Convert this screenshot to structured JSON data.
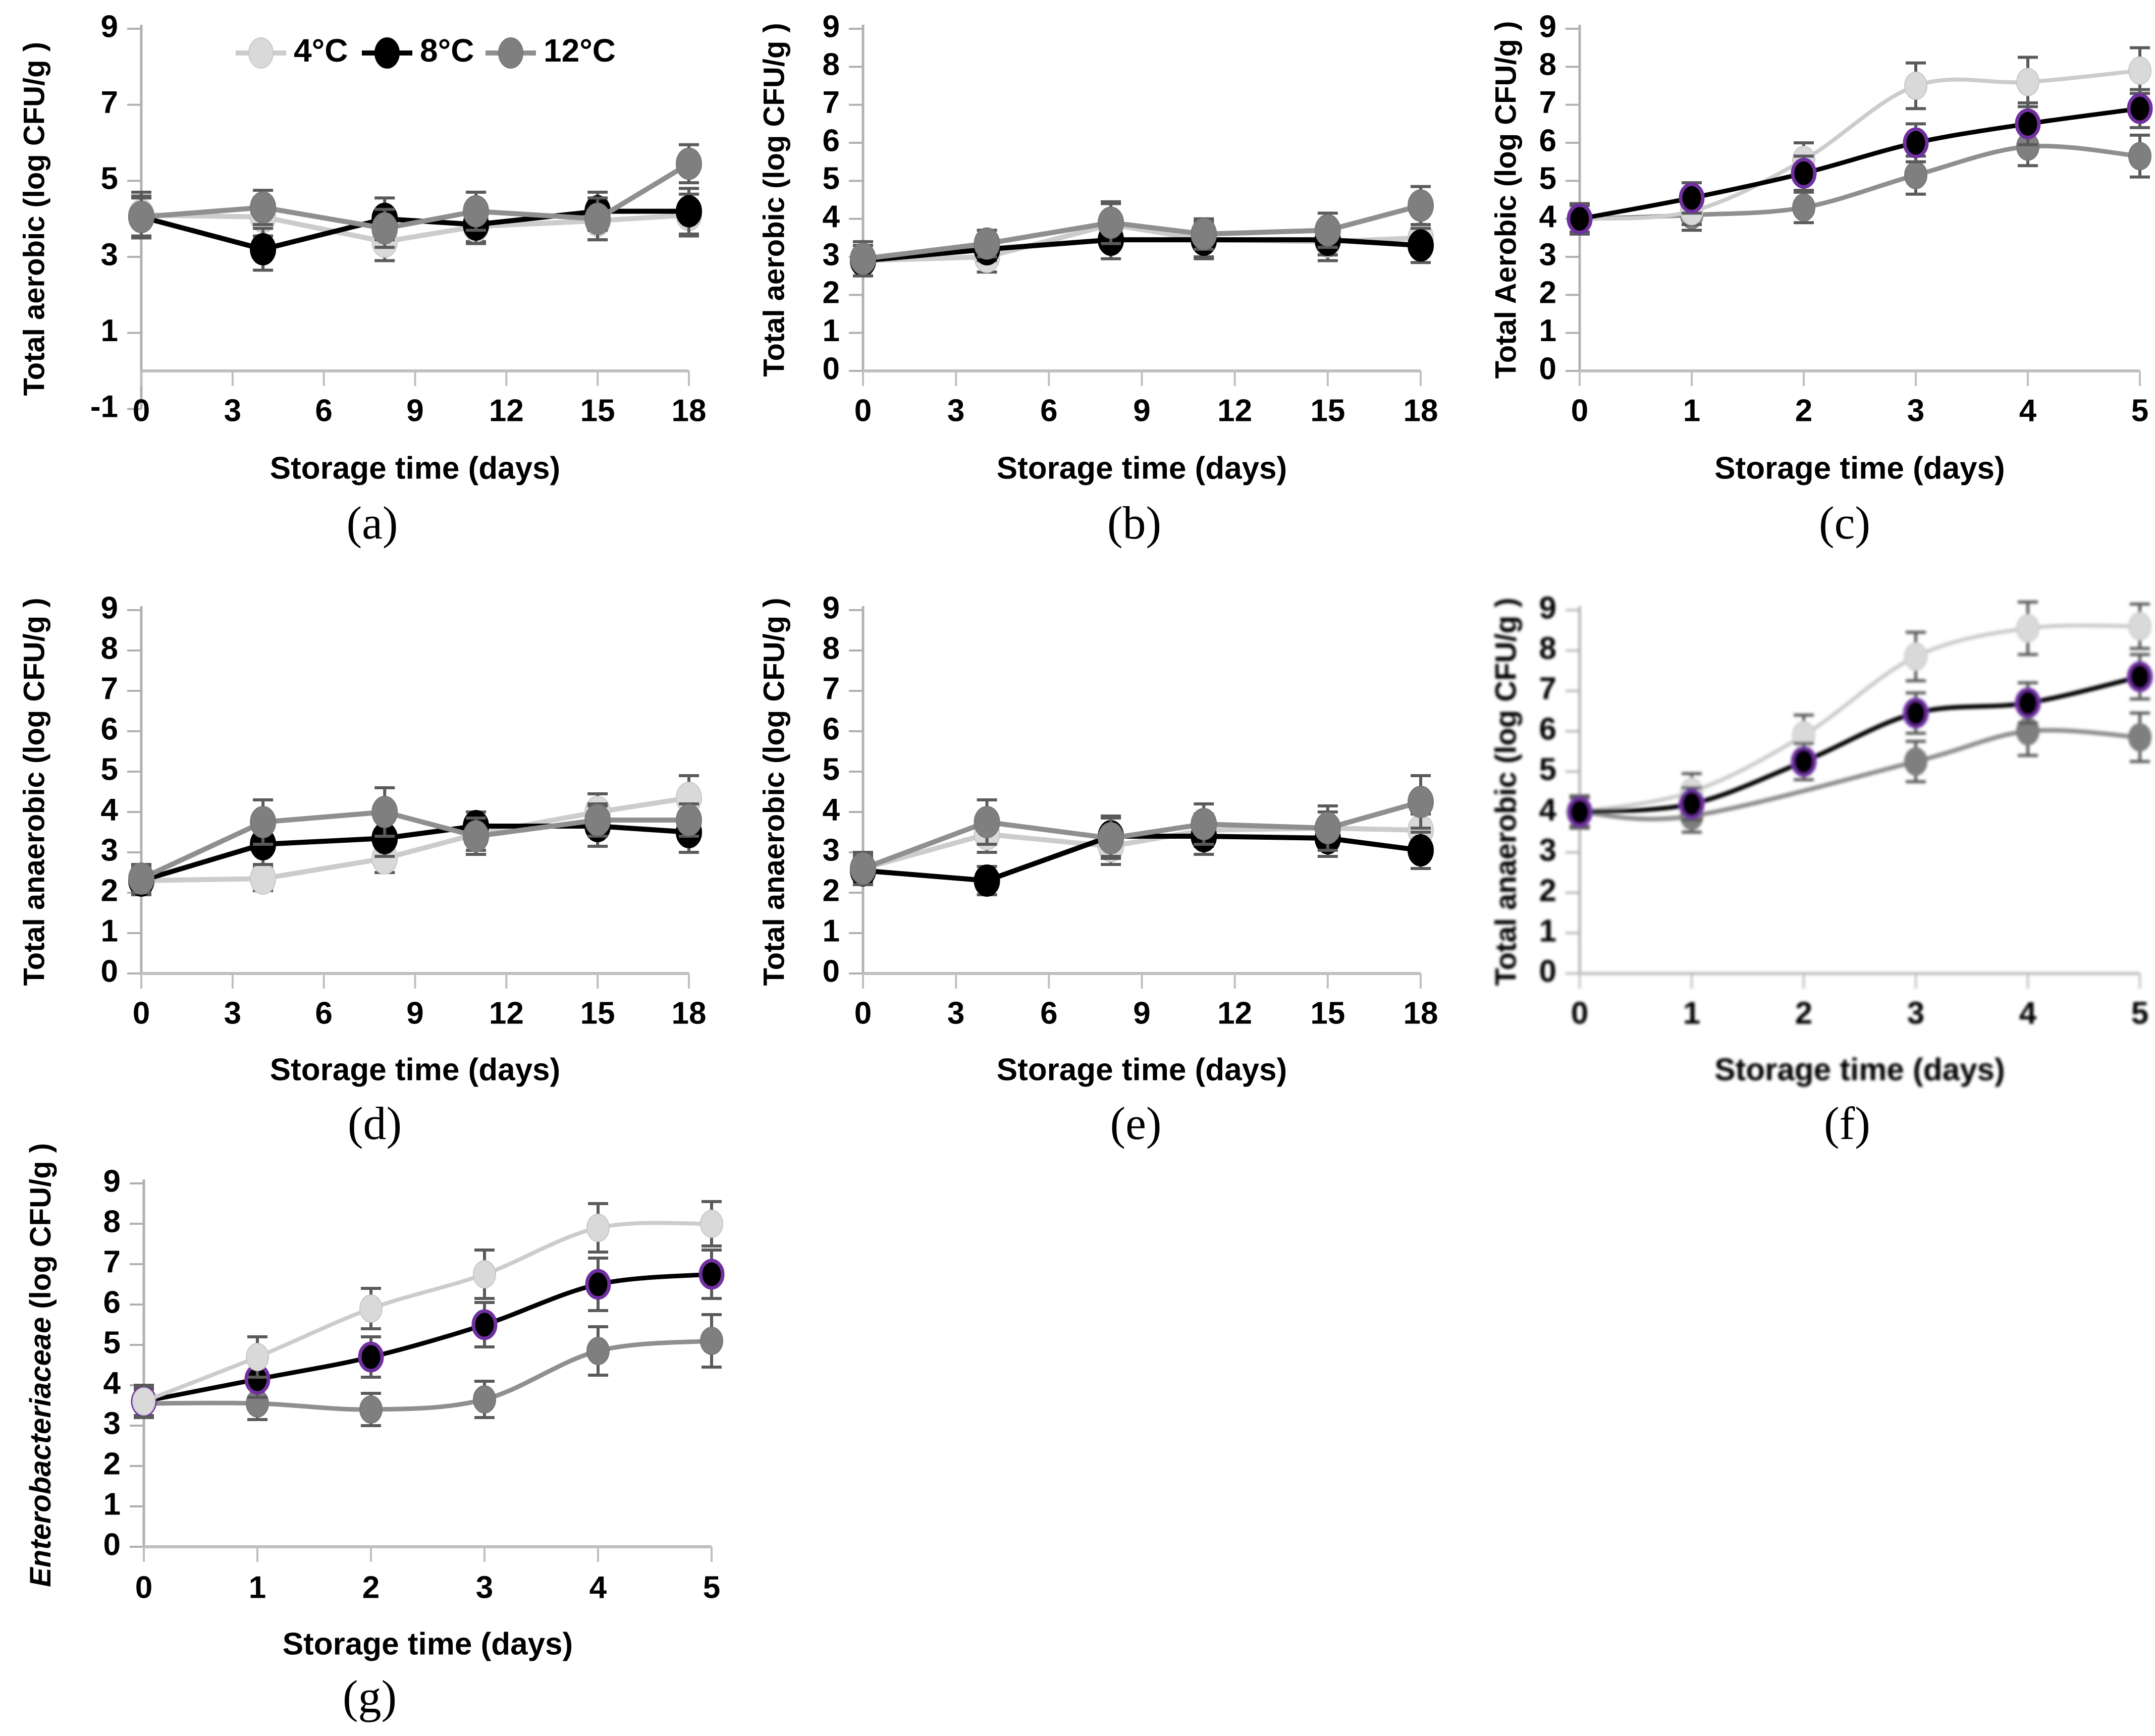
{
  "figure_title": "",
  "legend": {
    "items": [
      {
        "label": "4°C",
        "color": "#d3d3d3"
      },
      {
        "label": "8°C",
        "color": "#000000"
      },
      {
        "label": "12°C",
        "color": "#7f7f7f"
      }
    ]
  },
  "palette": {
    "series_4C_line": "#cccccc",
    "series_4C_marker": "#d9d9d9",
    "series_8C_line": "#000000",
    "series_8C_marker": "#000000",
    "series_12C_line": "#8f8f8f",
    "series_12C_marker": "#7f7f7f",
    "marker_ring_purple": "#7030a0",
    "error_bar": "#5a5a5a",
    "axis_line": "#bfbfbf",
    "y_axis_line": "#b0b0b0",
    "text": "#000000"
  },
  "chart_data": [
    {
      "type": "line",
      "id": "a",
      "letter": "(a)",
      "title": "",
      "ylabel": "Total aerobic (log CFU/g )",
      "xlabel": "Storage time (days)",
      "x_ticks": [
        0,
        3,
        6,
        9,
        12,
        15,
        18
      ],
      "y_ticks": [
        -1,
        1,
        3,
        5,
        7,
        9
      ],
      "xlim": [
        0,
        18
      ],
      "ylim": [
        -1,
        9
      ],
      "axis_cross_y": 0,
      "smooth": false,
      "show_legend": true,
      "grid": false,
      "x": [
        0,
        4,
        8,
        11,
        15,
        18
      ],
      "series": [
        {
          "name": "4°C",
          "values": [
            4.1,
            4.05,
            3.4,
            3.8,
            3.95,
            4.1
          ],
          "err": [
            0.6,
            0.5,
            0.5,
            0.4,
            0.5,
            0.55
          ]
        },
        {
          "name": "8°C",
          "values": [
            4.05,
            3.2,
            4.0,
            3.85,
            4.2,
            4.2
          ],
          "err": [
            0.5,
            0.55,
            0.55,
            0.5,
            0.5,
            0.6
          ]
        },
        {
          "name": "12°C",
          "values": [
            4.05,
            4.3,
            3.75,
            4.2,
            4.0,
            5.45
          ],
          "err": [
            0.55,
            0.45,
            0.5,
            0.5,
            0.55,
            0.5
          ]
        }
      ]
    },
    {
      "type": "line",
      "id": "b",
      "letter": "(b)",
      "title": "",
      "ylabel": "Total aerobic (log CFU/g )",
      "xlabel": "Storage time (days)",
      "x_ticks": [
        0,
        3,
        6,
        9,
        12,
        15,
        18
      ],
      "y_ticks": [
        0,
        1,
        2,
        3,
        4,
        5,
        6,
        7,
        8,
        9
      ],
      "xlim": [
        0,
        18
      ],
      "ylim": [
        0,
        9
      ],
      "axis_cross_y": 0,
      "smooth": false,
      "show_legend": false,
      "grid": false,
      "x": [
        0,
        4,
        8,
        11,
        15,
        18
      ],
      "series": [
        {
          "name": "4°C",
          "values": [
            2.9,
            3.0,
            3.85,
            3.45,
            3.4,
            3.5
          ],
          "err": [
            0.4,
            0.4,
            0.55,
            0.5,
            0.5,
            0.35
          ]
        },
        {
          "name": "8°C",
          "values": [
            2.9,
            3.2,
            3.45,
            3.45,
            3.45,
            3.3
          ],
          "err": [
            0.4,
            0.3,
            0.5,
            0.45,
            0.4,
            0.45
          ]
        },
        {
          "name": "12°C",
          "values": [
            2.95,
            3.35,
            3.9,
            3.6,
            3.7,
            4.35
          ],
          "err": [
            0.45,
            0.35,
            0.55,
            0.4,
            0.45,
            0.5
          ]
        }
      ]
    },
    {
      "type": "line",
      "id": "c",
      "letter": "(c)",
      "title": "",
      "ylabel": "Total Aerobic (log CFU/g )",
      "xlabel": "Storage time (days)",
      "x_ticks": [
        0,
        1,
        2,
        3,
        4,
        5
      ],
      "y_ticks": [
        0,
        1,
        2,
        3,
        4,
        5,
        6,
        7,
        8,
        9
      ],
      "xlim": [
        0,
        5
      ],
      "ylim": [
        0,
        9
      ],
      "axis_cross_y": 0,
      "smooth": true,
      "show_legend": false,
      "grid": false,
      "x": [
        0,
        1,
        2,
        3,
        4,
        5
      ],
      "series": [
        {
          "name": "4°C",
          "values": [
            4.0,
            4.2,
            5.55,
            7.5,
            7.6,
            7.9
          ],
          "err": [
            0.4,
            0.35,
            0.45,
            0.6,
            0.65,
            0.6
          ]
        },
        {
          "name": "8°C",
          "values": [
            4.0,
            4.55,
            5.2,
            6.0,
            6.5,
            6.9
          ],
          "err": [
            0.35,
            0.4,
            0.45,
            0.5,
            0.55,
            0.5
          ],
          "marker_ring": true
        },
        {
          "name": "12°C",
          "values": [
            4.0,
            4.1,
            4.3,
            5.15,
            5.9,
            5.65
          ],
          "err": [
            0.4,
            0.4,
            0.4,
            0.5,
            0.5,
            0.55
          ]
        }
      ]
    },
    {
      "type": "line",
      "id": "d",
      "letter": "(d)",
      "title": "",
      "ylabel": "Total anaerobic (log CFU/g )",
      "xlabel": "Storage time (days)",
      "x_ticks": [
        0,
        3,
        6,
        9,
        12,
        15,
        18
      ],
      "y_ticks": [
        0,
        1,
        2,
        3,
        4,
        5,
        6,
        7,
        8,
        9
      ],
      "xlim": [
        0,
        18
      ],
      "ylim": [
        0,
        9
      ],
      "axis_cross_y": 0,
      "smooth": false,
      "show_legend": false,
      "grid": false,
      "x": [
        0,
        4,
        8,
        11,
        15,
        18
      ],
      "series": [
        {
          "name": "4°C",
          "values": [
            2.3,
            2.35,
            2.85,
            3.45,
            4.0,
            4.35
          ],
          "err": [
            0.35,
            0.3,
            0.35,
            0.4,
            0.45,
            0.55
          ]
        },
        {
          "name": "8°C",
          "values": [
            2.3,
            3.2,
            3.35,
            3.65,
            3.65,
            3.5
          ],
          "err": [
            0.3,
            0.5,
            0.45,
            0.35,
            0.5,
            0.5
          ]
        },
        {
          "name": "12°C",
          "values": [
            2.35,
            3.75,
            4.0,
            3.4,
            3.8,
            3.8
          ],
          "err": [
            0.35,
            0.55,
            0.6,
            0.45,
            0.4,
            0.4
          ]
        }
      ]
    },
    {
      "type": "line",
      "id": "e",
      "letter": "(e)",
      "title": "",
      "ylabel": "Total anaerobic (log CFU/g )",
      "xlabel": "Storage time (days)",
      "x_ticks": [
        0,
        3,
        6,
        9,
        12,
        15,
        18
      ],
      "y_ticks": [
        0,
        1,
        2,
        3,
        4,
        5,
        6,
        7,
        8,
        9
      ],
      "xlim": [
        0,
        18
      ],
      "ylim": [
        0,
        9
      ],
      "axis_cross_y": 0,
      "smooth": false,
      "show_legend": false,
      "grid": false,
      "x": [
        0,
        4,
        8,
        11,
        15,
        18
      ],
      "series": [
        {
          "name": "4°C",
          "values": [
            2.6,
            3.45,
            3.15,
            3.55,
            3.6,
            3.55
          ],
          "err": [
            0.35,
            0.45,
            0.45,
            0.4,
            0.4,
            0.4
          ]
        },
        {
          "name": "8°C",
          "values": [
            2.55,
            2.3,
            3.4,
            3.4,
            3.35,
            3.05
          ],
          "err": [
            0.35,
            0.35,
            0.5,
            0.45,
            0.45,
            0.45
          ]
        },
        {
          "name": "12°C",
          "values": [
            2.6,
            3.75,
            3.35,
            3.7,
            3.6,
            4.25
          ],
          "err": [
            0.4,
            0.55,
            0.5,
            0.5,
            0.55,
            0.65
          ]
        }
      ]
    },
    {
      "type": "line",
      "id": "f",
      "letter": "(f)",
      "title": "",
      "ylabel": "Total anaerobic (log CFU/g )",
      "xlabel": "Storage time (days)",
      "x_ticks": [
        0,
        1,
        2,
        3,
        4,
        5
      ],
      "y_ticks": [
        0,
        1,
        2,
        3,
        4,
        5,
        6,
        7,
        8,
        9
      ],
      "xlim": [
        0,
        5
      ],
      "ylim": [
        0,
        9
      ],
      "axis_cross_y": 0,
      "smooth": true,
      "show_legend": false,
      "grid": false,
      "blurry": true,
      "x": [
        0,
        1,
        2,
        3,
        4,
        5
      ],
      "series": [
        {
          "name": "4°C",
          "values": [
            4.0,
            4.5,
            5.9,
            7.85,
            8.55,
            8.6
          ],
          "err": [
            0.4,
            0.45,
            0.5,
            0.6,
            0.65,
            0.55
          ]
        },
        {
          "name": "8°C",
          "values": [
            4.0,
            4.2,
            5.25,
            6.45,
            6.7,
            7.35
          ],
          "err": [
            0.35,
            0.4,
            0.45,
            0.5,
            0.5,
            0.55
          ],
          "marker_ring": true
        },
        {
          "name": "12°C",
          "values": [
            4.0,
            3.9,
            null,
            5.25,
            6.0,
            5.85
          ],
          "err": [
            0.4,
            0.4,
            null,
            0.5,
            0.6,
            0.6
          ]
        }
      ]
    },
    {
      "type": "line",
      "id": "g",
      "letter": "(g)",
      "title": "",
      "ylabel_parts": [
        {
          "text": "Enterobacteriaceae",
          "italic": true
        },
        {
          "text": " (log CFU/g )",
          "italic": false
        }
      ],
      "ylabel": "Enterobacteriaceae (log CFU/g )",
      "xlabel": "Storage time (days)",
      "x_ticks": [
        0,
        1,
        2,
        3,
        4,
        5
      ],
      "y_ticks": [
        0,
        1,
        2,
        3,
        4,
        5,
        6,
        7,
        8,
        9
      ],
      "xlim": [
        0,
        5
      ],
      "ylim": [
        0,
        9
      ],
      "axis_cross_y": 0,
      "smooth": true,
      "show_legend": false,
      "grid": false,
      "x": [
        0,
        1,
        2,
        3,
        4,
        5
      ],
      "series": [
        {
          "name": "4°C",
          "values": [
            3.6,
            4.7,
            5.9,
            6.75,
            7.9,
            8.0
          ],
          "err": [
            0.4,
            0.5,
            0.5,
            0.6,
            0.6,
            0.55
          ]
        },
        {
          "name": "8°C",
          "values": [
            3.6,
            4.15,
            4.7,
            5.5,
            6.5,
            6.75
          ],
          "err": [
            0.35,
            0.45,
            0.5,
            0.55,
            0.65,
            0.6
          ],
          "marker_ring": true
        },
        {
          "name": "12°C",
          "values": [
            3.55,
            3.55,
            3.4,
            3.65,
            4.85,
            5.1
          ],
          "err": [
            0.35,
            0.4,
            0.4,
            0.45,
            0.6,
            0.65
          ]
        }
      ]
    }
  ]
}
